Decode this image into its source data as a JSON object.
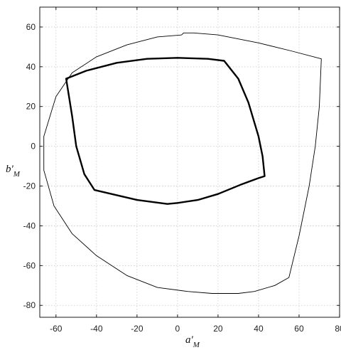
{
  "chart_data": {
    "type": "line",
    "title": "",
    "xlabel": "a'",
    "xlabel_sub": "M",
    "ylabel": "b'",
    "ylabel_sub": "M",
    "xlim": [
      -68,
      80
    ],
    "ylim": [
      -86,
      70
    ],
    "xticks": [
      -60,
      -40,
      -20,
      0,
      20,
      40,
      60,
      80
    ],
    "yticks": [
      -80,
      -60,
      -40,
      -20,
      0,
      20,
      40,
      60
    ],
    "grid": true,
    "series": [
      {
        "style": "thin",
        "points": [
          [
            2,
            56
          ],
          [
            3,
            57
          ],
          [
            8,
            57
          ],
          [
            20,
            56
          ],
          [
            40,
            52
          ],
          [
            56,
            48
          ],
          [
            71,
            44
          ],
          [
            70,
            20
          ],
          [
            68,
            0
          ],
          [
            65,
            -20
          ],
          [
            60,
            -45
          ],
          [
            55,
            -66
          ],
          [
            48,
            -70
          ],
          [
            38,
            -73
          ],
          [
            30,
            -74
          ],
          [
            17,
            -74
          ],
          [
            5,
            -73
          ],
          [
            -10,
            -71
          ],
          [
            -25,
            -65
          ],
          [
            -40,
            -55
          ],
          [
            -52,
            -44
          ],
          [
            -61,
            -30
          ],
          [
            -66,
            -12
          ],
          [
            -66,
            5
          ],
          [
            -60,
            25
          ],
          [
            -52,
            37
          ],
          [
            -40,
            45
          ],
          [
            -25,
            51
          ],
          [
            -10,
            55
          ],
          [
            2,
            56
          ]
        ]
      },
      {
        "style": "thick",
        "points": [
          [
            -55,
            34
          ],
          [
            -45,
            38
          ],
          [
            -30,
            42
          ],
          [
            -15,
            44
          ],
          [
            0,
            44.5
          ],
          [
            15,
            44
          ],
          [
            23,
            43
          ],
          [
            30,
            34
          ],
          [
            35,
            22
          ],
          [
            40,
            5
          ],
          [
            42,
            -5
          ],
          [
            43,
            -15
          ],
          [
            40,
            -16
          ],
          [
            32,
            -19
          ],
          [
            20,
            -24
          ],
          [
            10,
            -27
          ],
          [
            0,
            -28.5
          ],
          [
            -5,
            -29
          ],
          [
            -20,
            -27
          ],
          [
            -41,
            -22
          ],
          [
            -46,
            -14
          ],
          [
            -50,
            0
          ],
          [
            -52,
            15
          ],
          [
            -55,
            34
          ]
        ]
      }
    ]
  }
}
